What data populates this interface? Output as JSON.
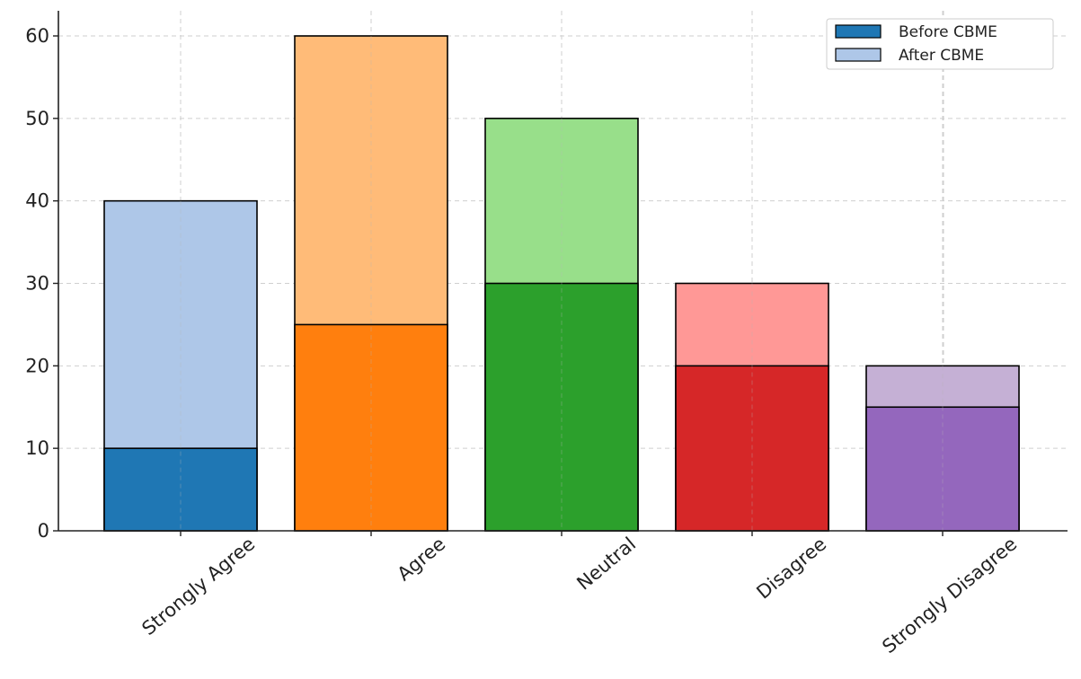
{
  "chart_data": {
    "type": "bar",
    "stacked_overlay": true,
    "categories": [
      "Strongly Agree",
      "Agree",
      "Neutral",
      "Disagree",
      "Strongly Disagree"
    ],
    "series": [
      {
        "name": "Before CBME",
        "values": [
          10,
          25,
          30,
          20,
          15
        ]
      },
      {
        "name": "After CBME",
        "values": [
          40,
          60,
          50,
          30,
          20
        ]
      }
    ],
    "colors": {
      "before": [
        "#1f77b4",
        "#ff7f0e",
        "#2ca02c",
        "#d62728",
        "#9467bd"
      ],
      "after": [
        "#aec7e8",
        "#ffbb78",
        "#98df8a",
        "#ff9896",
        "#c5b0d5"
      ]
    },
    "ylim": [
      0,
      63
    ],
    "yticks": [
      0,
      10,
      20,
      30,
      40,
      50,
      60
    ],
    "xlabel": "",
    "ylabel": "",
    "title": "",
    "grid": true,
    "legend_position": "top-right"
  }
}
